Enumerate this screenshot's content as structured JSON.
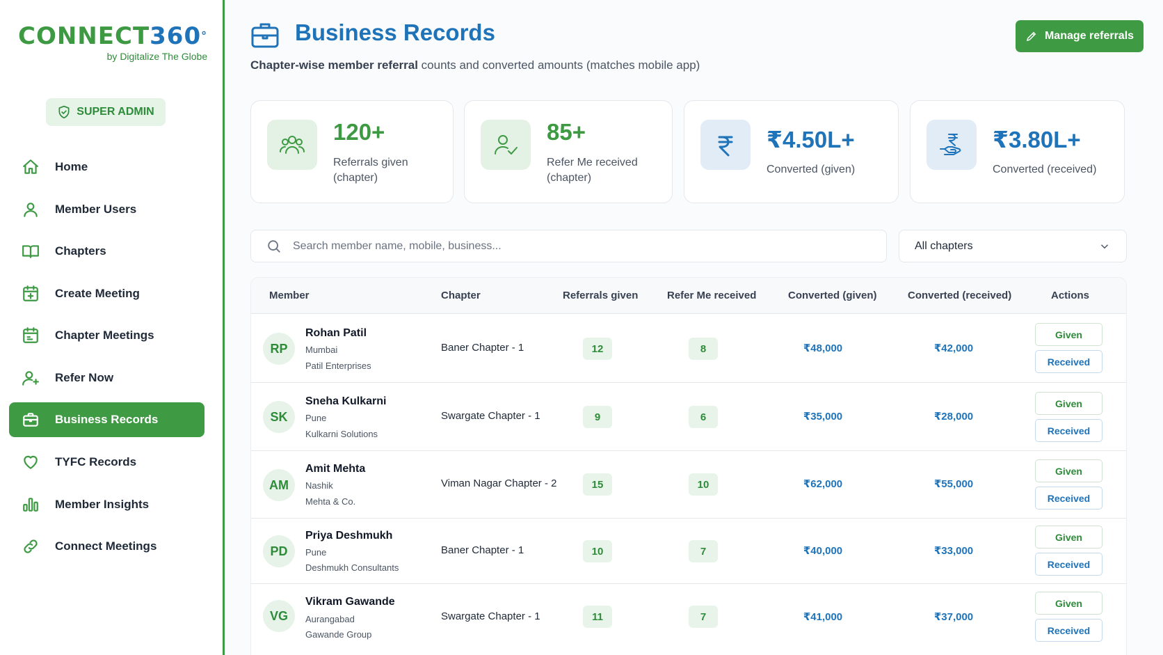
{
  "brand": {
    "logo_part1": "CONNECT",
    "logo_part2": "360",
    "logo_mark": "°",
    "tagline": "by Digitalize The Globe"
  },
  "role_badge": "SUPER ADMIN",
  "sidebar": {
    "items": [
      {
        "label": "Home",
        "icon": "home-icon",
        "active": false
      },
      {
        "label": "Member Users",
        "icon": "user-icon",
        "active": false
      },
      {
        "label": "Chapters",
        "icon": "book-icon",
        "active": false
      },
      {
        "label": "Create Meeting",
        "icon": "calendar-plus-icon",
        "active": false
      },
      {
        "label": "Chapter Meetings",
        "icon": "calendar-icon",
        "active": false
      },
      {
        "label": "Refer Now",
        "icon": "user-plus-icon",
        "active": false
      },
      {
        "label": "Business Records",
        "icon": "briefcase-icon",
        "active": true
      },
      {
        "label": "TYFC Records",
        "icon": "heart-icon",
        "active": false
      },
      {
        "label": "Member Insights",
        "icon": "bar-chart-icon",
        "active": false
      },
      {
        "label": "Connect Meetings",
        "icon": "link-icon",
        "active": false
      }
    ]
  },
  "header": {
    "title": "Business Records",
    "subtitle_bold": "Chapter-wise member referral",
    "subtitle_rest": " counts and converted amounts (matches mobile app)",
    "manage_button": "Manage referrals"
  },
  "stats": [
    {
      "value": "120+",
      "label_line1": "Referrals given",
      "label_line2": "(chapter)",
      "icon": "users-icon",
      "tone": "green"
    },
    {
      "value": "85+",
      "label_line1": "Refer Me received",
      "label_line2": "(chapter)",
      "icon": "user-check-icon",
      "tone": "green"
    },
    {
      "value": "₹4.50L+",
      "label_line1": "Converted (given)",
      "label_line2": "",
      "icon": "rupee-icon",
      "tone": "blue"
    },
    {
      "value": "₹3.80L+",
      "label_line1": "Converted (received)",
      "label_line2": "",
      "icon": "rupee-hand-icon",
      "tone": "blue"
    }
  ],
  "search": {
    "placeholder": "Search member name, mobile, business..."
  },
  "chapter_filter": {
    "selected": "All chapters"
  },
  "table": {
    "columns": [
      "Member",
      "Chapter",
      "Referrals given",
      "Refer Me received",
      "Converted (given)",
      "Converted (received)",
      "Actions"
    ],
    "action_given": "Given",
    "action_received": "Received",
    "rows": [
      {
        "initials": "RP",
        "name": "Rohan Patil",
        "city": "Mumbai",
        "business": "Patil Enterprises",
        "chapter": "Baner Chapter - 1",
        "given": "12",
        "received": "8",
        "conv_given": "₹48,000",
        "conv_received": "₹42,000"
      },
      {
        "initials": "SK",
        "name": "Sneha Kulkarni",
        "city": "Pune",
        "business": "Kulkarni Solutions",
        "chapter": "Swargate Chapter - 1",
        "given": "9",
        "received": "6",
        "conv_given": "₹35,000",
        "conv_received": "₹28,000"
      },
      {
        "initials": "AM",
        "name": "Amit Mehta",
        "city": "Nashik",
        "business": "Mehta & Co.",
        "chapter": "Viman Nagar Chapter - 2",
        "given": "15",
        "received": "10",
        "conv_given": "₹62,000",
        "conv_received": "₹55,000"
      },
      {
        "initials": "PD",
        "name": "Priya Deshmukh",
        "city": "Pune",
        "business": "Deshmukh Consultants",
        "chapter": "Baner Chapter - 1",
        "given": "10",
        "received": "7",
        "conv_given": "₹40,000",
        "conv_received": "₹33,000"
      },
      {
        "initials": "VG",
        "name": "Vikram Gawande",
        "city": "Aurangabad",
        "business": "Gawande Group",
        "chapter": "Swargate Chapter - 1",
        "given": "11",
        "received": "7",
        "conv_given": "₹41,000",
        "conv_received": "₹37,000"
      }
    ]
  }
}
